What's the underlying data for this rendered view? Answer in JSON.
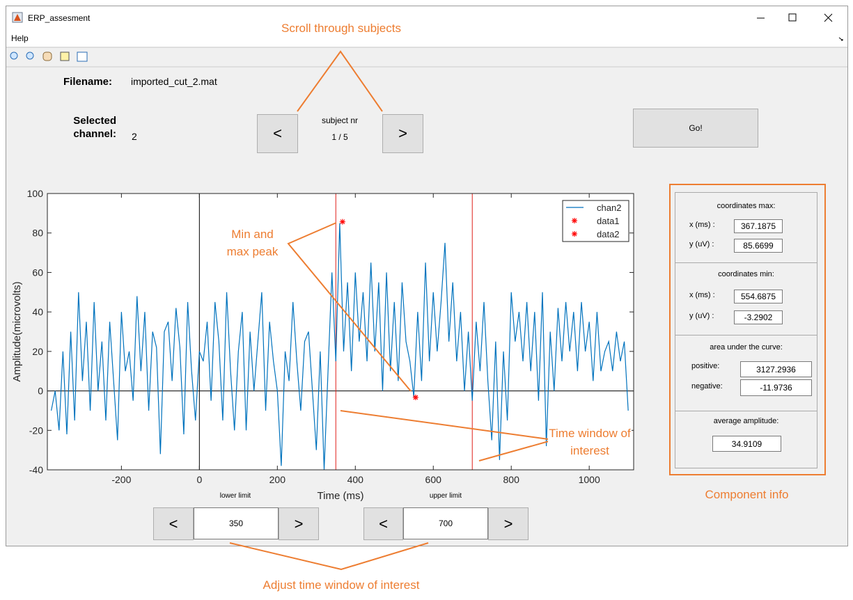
{
  "window": {
    "title": "ERP_assesment",
    "menu": "Help"
  },
  "header": {
    "filename_label": "Filename:",
    "filename": "imported_cut_2.mat",
    "channel_label": "Selected channel:",
    "channel": "2",
    "subject_label": "subject nr",
    "subject": "1 / 5",
    "go": "Go!"
  },
  "buttons": {
    "prev": "<",
    "next": ">"
  },
  "limits": {
    "lower_label": "lower limit",
    "lower": 350,
    "upper_label": "upper limit",
    "upper": 700
  },
  "component_info": {
    "max": {
      "title": "coordinates max:",
      "x_label": "x (ms) :",
      "x": 367.1875,
      "y_label": "y (uV) :",
      "y": 85.6699
    },
    "min": {
      "title": "coordinates min:",
      "x_label": "x (ms) :",
      "x": 554.6875,
      "y_label": "y (uV) :",
      "y": -3.2902
    },
    "area": {
      "title": "area under the curve:",
      "positive_label": "positive:",
      "positive": 3127.2936,
      "negative_label": "negative:",
      "negative": -11.9736
    },
    "average": {
      "title": "average amplitude:",
      "value": 34.9109
    }
  },
  "annotations": [
    "Scroll through subjects",
    "Min and max peak",
    "Time window of interest",
    "Component info",
    "Adjust time window of interest"
  ],
  "chart_data": {
    "type": "line",
    "xlabel": "Time (ms)",
    "ylabel": "Amplitude(microvolts)",
    "xlim": [
      -390,
      1114
    ],
    "ylim": [
      -40,
      100
    ],
    "xticks": [
      -200,
      0,
      200,
      400,
      600,
      800,
      1000
    ],
    "yticks": [
      -40,
      -20,
      0,
      20,
      40,
      60,
      80,
      100
    ],
    "legend": "upper right",
    "series": [
      {
        "name": "chan2",
        "color": "#0072bd",
        "x": [
          -380,
          -370,
          -360,
          -350,
          -340,
          -330,
          -320,
          -310,
          -300,
          -290,
          -280,
          -270,
          -260,
          -250,
          -240,
          -230,
          -220,
          -210,
          -200,
          -190,
          -180,
          -170,
          -160,
          -150,
          -140,
          -130,
          -120,
          -110,
          -100,
          -90,
          -80,
          -70,
          -60,
          -50,
          -40,
          -30,
          -20,
          -10,
          0,
          10,
          20,
          30,
          40,
          50,
          60,
          70,
          80,
          90,
          100,
          110,
          120,
          130,
          140,
          150,
          160,
          170,
          180,
          190,
          200,
          210,
          220,
          230,
          240,
          250,
          260,
          270,
          280,
          290,
          300,
          310,
          320,
          330,
          340,
          350,
          360,
          370,
          380,
          390,
          400,
          410,
          420,
          430,
          440,
          450,
          460,
          470,
          480,
          490,
          500,
          510,
          520,
          530,
          540,
          550,
          560,
          570,
          580,
          590,
          600,
          610,
          620,
          630,
          640,
          650,
          660,
          670,
          680,
          690,
          700,
          710,
          720,
          730,
          740,
          750,
          760,
          770,
          780,
          790,
          800,
          810,
          820,
          830,
          840,
          850,
          860,
          870,
          880,
          890,
          900,
          910,
          920,
          930,
          940,
          950,
          960,
          970,
          980,
          990,
          1000,
          1010,
          1020,
          1030,
          1040,
          1050,
          1060,
          1070,
          1080,
          1090,
          1100
        ],
        "values": [
          -10,
          0,
          -20,
          20,
          -22,
          30,
          -15,
          50,
          5,
          35,
          -10,
          45,
          0,
          25,
          -15,
          35,
          5,
          -25,
          40,
          10,
          20,
          -5,
          48,
          10,
          40,
          -10,
          30,
          22,
          -32,
          30,
          35,
          5,
          42,
          22,
          -22,
          45,
          10,
          -15,
          20,
          15,
          35,
          -5,
          45,
          25,
          -15,
          50,
          10,
          -20,
          20,
          40,
          -20,
          30,
          0,
          25,
          50,
          -10,
          35,
          15,
          0,
          -38,
          20,
          5,
          45,
          15,
          -10,
          25,
          30,
          0,
          -30,
          20,
          -40,
          10,
          60,
          15,
          85,
          20,
          55,
          10,
          60,
          25,
          50,
          15,
          65,
          20,
          55,
          0,
          60,
          10,
          45,
          5,
          55,
          25,
          15,
          -3,
          40,
          5,
          65,
          15,
          50,
          20,
          45,
          75,
          25,
          55,
          15,
          40,
          0,
          30,
          -5,
          35,
          10,
          45,
          5,
          -25,
          25,
          -35,
          20,
          -15,
          50,
          25,
          40,
          15,
          45,
          10,
          40,
          -5,
          50,
          -28,
          30,
          0,
          42,
          15,
          45,
          20,
          40,
          10,
          45,
          20,
          35,
          5,
          40,
          10,
          20,
          25,
          10,
          30,
          15,
          25,
          -10
        ]
      },
      {
        "name": "data1",
        "color": "#ff0000",
        "marker": "star",
        "x": [
          367.1875
        ],
        "values": [
          85.6699
        ]
      },
      {
        "name": "data2",
        "color": "#ff0000",
        "marker": "star",
        "x": [
          554.6875
        ],
        "values": [
          -3.2902
        ]
      }
    ]
  }
}
